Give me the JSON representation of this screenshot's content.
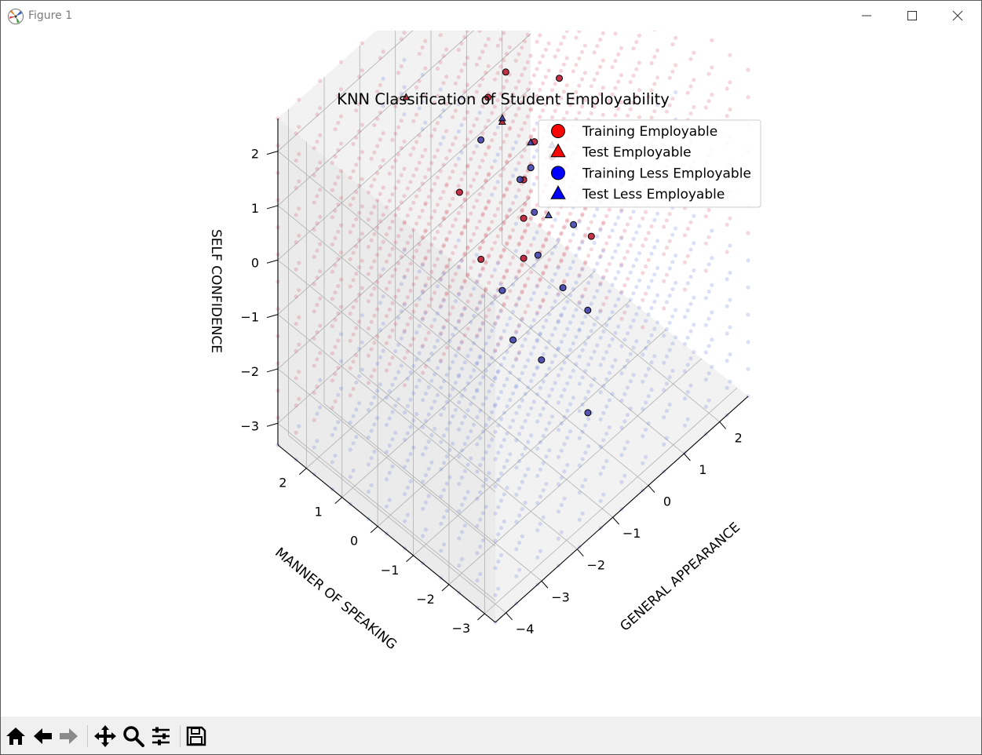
{
  "window": {
    "title": "Figure 1",
    "controls": [
      "minimize",
      "maximize",
      "close"
    ]
  },
  "toolbar": {
    "buttons": [
      {
        "name": "home-icon",
        "label": "Home"
      },
      {
        "name": "back-icon",
        "label": "Back"
      },
      {
        "name": "forward-icon",
        "label": "Forward"
      },
      {
        "name": "pan-icon",
        "label": "Pan"
      },
      {
        "name": "zoom-icon",
        "label": "Zoom"
      },
      {
        "name": "configure-icon",
        "label": "Configure subplots"
      },
      {
        "name": "save-icon",
        "label": "Save"
      }
    ]
  },
  "colors": {
    "employable": "#ff0000",
    "less_employable": "#0000ff",
    "region_employable": "#d24a5a",
    "region_less": "#5b73d6"
  },
  "chart_data": {
    "type": "scatter",
    "projection": "3d",
    "title": "KNN Classification of Student Employability",
    "xlabel": "GENERAL APPEARANCE",
    "ylabel": "MANNER OF SPEAKING",
    "zlabel": "SELF CONFIDENCE",
    "xlim": [
      -4.3,
      2.8
    ],
    "ylim": [
      -3.3,
      2.8
    ],
    "zlim": [
      -3.4,
      2.6
    ],
    "xticks": [
      -4,
      -3,
      -2,
      -1,
      0,
      1,
      2
    ],
    "yticks": [
      -3,
      -2,
      -1,
      0,
      1,
      2
    ],
    "zticks": [
      -3,
      -2,
      -1,
      0,
      1,
      2
    ],
    "grid": true,
    "legend": {
      "placement": "upper right",
      "entries": [
        {
          "label": "Training Employable",
          "marker": "circle",
          "color": "#ff0000"
        },
        {
          "label": "Test Employable",
          "marker": "triangle",
          "color": "#ff0000"
        },
        {
          "label": "Training Less Employable",
          "marker": "circle",
          "color": "#0000ff"
        },
        {
          "label": "Test Less Employable",
          "marker": "triangle",
          "color": "#0000ff"
        }
      ]
    },
    "series": [
      {
        "name": "Training Employable",
        "marker": "circle",
        "color": "#ff0000",
        "points": [
          [
            0.4,
            -0.4,
            2.3
          ],
          [
            -0.6,
            0.6,
            2.0
          ],
          [
            0.5,
            1.2,
            1.5
          ],
          [
            0.0,
            -0.6,
            1.2
          ],
          [
            -1.2,
            0.8,
            0.5
          ],
          [
            -0.5,
            -0.3,
            0.2
          ],
          [
            0.2,
            -1.5,
            0.1
          ],
          [
            -1.3,
            0.1,
            -0.3
          ],
          [
            0.4,
            0.6,
            -0.1
          ],
          [
            -0.8,
            -0.6,
            -0.2
          ],
          [
            0.9,
            0.8,
            0.2
          ]
        ]
      },
      {
        "name": "Test Employable",
        "marker": "triangle",
        "color": "#ff0000",
        "points": [
          [
            -1.7,
            1.8,
            2.0
          ],
          [
            -0.1,
            0.7,
            1.2
          ]
        ]
      },
      {
        "name": "Training Less Employable",
        "marker": "circle",
        "color": "#0000ff",
        "points": [
          [
            -0.5,
            0.9,
            1.0
          ],
          [
            0.0,
            0.3,
            0.3
          ],
          [
            -0.2,
            -0.2,
            0.9
          ],
          [
            0.6,
            -0.6,
            -0.4
          ],
          [
            -0.9,
            -0.1,
            -1.0
          ],
          [
            0.1,
            0.0,
            -0.2
          ],
          [
            -0.4,
            -1.3,
            -0.6
          ],
          [
            -1.3,
            -0.8,
            -1.3
          ],
          [
            -0.8,
            -1.1,
            -1.8
          ],
          [
            0.1,
            -1.5,
            -1.2
          ],
          [
            -0.6,
            -2.2,
            -2.3
          ],
          [
            -0.2,
            -0.4,
            -0.6
          ]
        ]
      },
      {
        "name": "Test Less Employable",
        "marker": "triangle",
        "color": "#0000ff",
        "points": [
          [
            -0.4,
            0.4,
            1.6
          ],
          [
            0.3,
            0.3,
            0.8
          ],
          [
            0.9,
            0.3,
            0.4
          ],
          [
            -0.3,
            -0.8,
            0.4
          ]
        ]
      }
    ]
  }
}
